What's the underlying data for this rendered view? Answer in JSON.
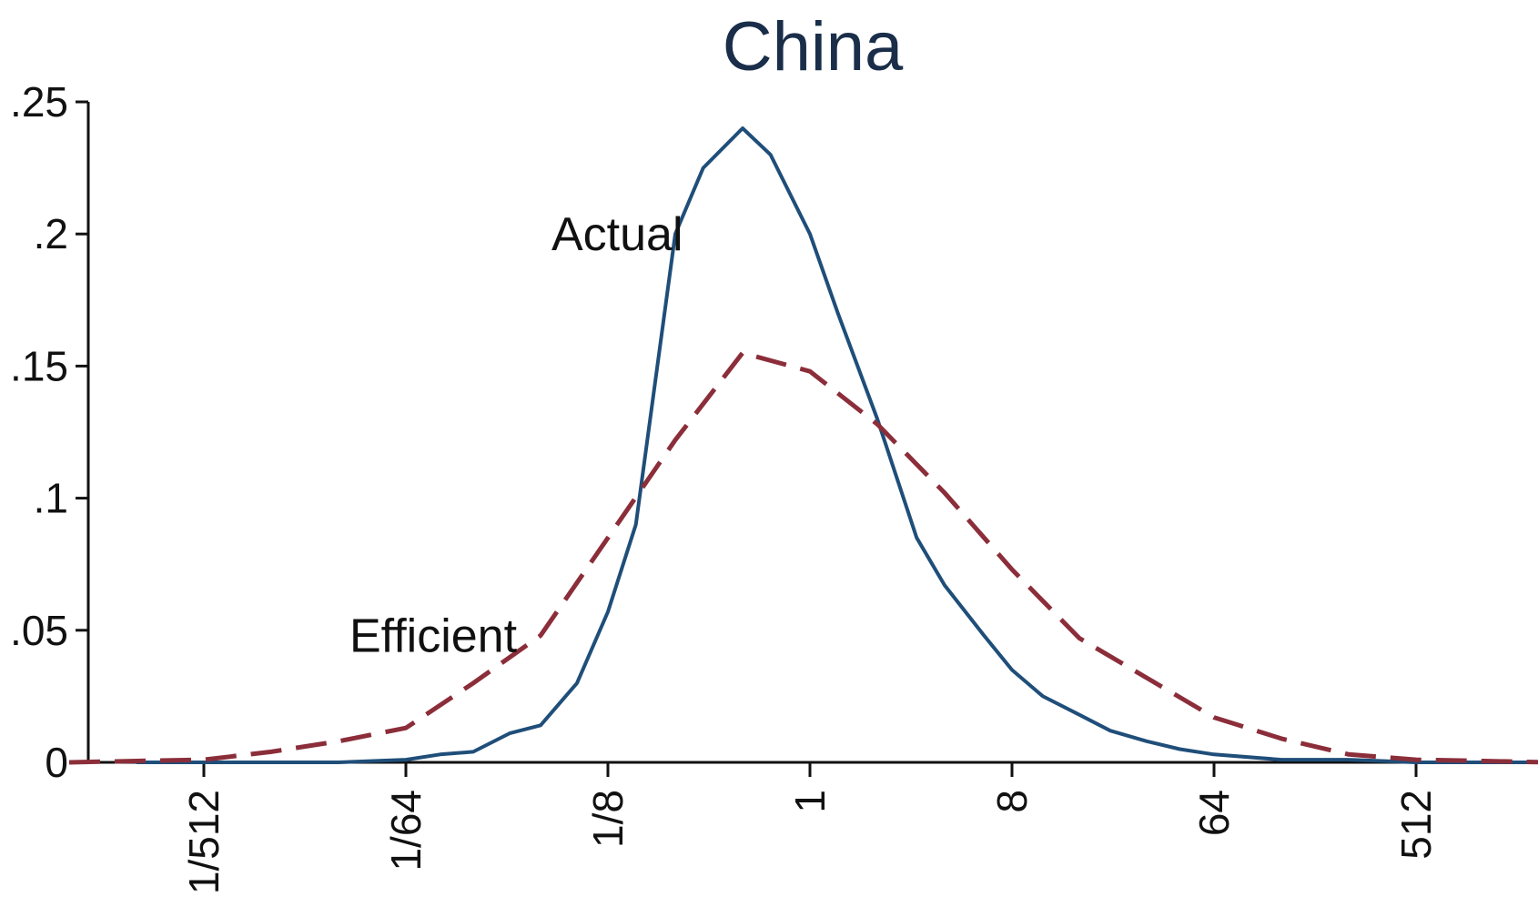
{
  "chart_data": {
    "type": "line",
    "title": "China",
    "xlabel": "",
    "ylabel": "",
    "x_scale": "log2",
    "xlim": [
      "1/2048",
      "2048"
    ],
    "ylim": [
      0,
      0.25
    ],
    "grid": false,
    "legend": "none",
    "x_ticks": [
      {
        "label": "1/512",
        "value": "1/512"
      },
      {
        "label": "1/64",
        "value": "1/64"
      },
      {
        "label": "1/8",
        "value": "1/8"
      },
      {
        "label": "1",
        "value": "1"
      },
      {
        "label": "8",
        "value": "8"
      },
      {
        "label": "64",
        "value": "64"
      },
      {
        "label": "512",
        "value": "512"
      }
    ],
    "y_ticks": [
      {
        "label": "0",
        "value": 0
      },
      {
        "label": ".05",
        "value": 0.05
      },
      {
        "label": ".1",
        "value": 0.1
      },
      {
        "label": ".15",
        "value": 0.15
      },
      {
        "label": ".2",
        "value": 0.2
      },
      {
        "label": ".25",
        "value": 0.25
      }
    ],
    "annotations": [
      {
        "text": "Actual",
        "x": "1/8",
        "y": 0.2
      },
      {
        "text": "Efficient",
        "x": "1/64",
        "y": 0.048
      }
    ],
    "series": [
      {
        "color": "#1f4e79",
        "style": "solid",
        "x": [
          "1/1024",
          "1/512",
          "1/256",
          "1/128",
          "1/64",
          "1/45",
          "1/32",
          "1/22",
          "1/16",
          "1/11",
          "1/8",
          "1/6",
          "1/4",
          "1/3",
          "1/2",
          "2/3",
          "1",
          "4/3",
          "2",
          "3",
          "4",
          "6",
          "8",
          "11",
          "16",
          "22",
          "32",
          "45",
          "64",
          "128",
          "256",
          "512",
          "2048"
        ],
        "values": [
          0,
          0,
          0,
          0,
          0.001,
          0.003,
          0.004,
          0.011,
          0.014,
          0.03,
          0.057,
          0.09,
          0.2,
          0.225,
          0.24,
          0.23,
          0.2,
          0.17,
          0.13,
          0.085,
          0.067,
          0.048,
          0.035,
          0.025,
          0.018,
          0.012,
          0.008,
          0.005,
          0.003,
          0.001,
          0.001,
          0,
          0
        ]
      },
      {
        "color": "#8b2e3a",
        "style": "dashed",
        "x": [
          "1/2048",
          "1/1024",
          "1/512",
          "1/256",
          "1/128",
          "1/64",
          "1/32",
          "1/16",
          "1/8",
          "1/4",
          "1/2",
          "1",
          "2",
          "4",
          "8",
          "16",
          "32",
          "64",
          "128",
          "256",
          "512",
          "1024",
          "2048"
        ],
        "values": [
          0,
          0.0005,
          0.001,
          0.004,
          0.008,
          0.013,
          0.03,
          0.048,
          0.085,
          0.122,
          0.155,
          0.148,
          0.128,
          0.102,
          0.073,
          0.047,
          0.032,
          0.017,
          0.009,
          0.003,
          0.001,
          0.0005,
          0
        ]
      }
    ]
  }
}
